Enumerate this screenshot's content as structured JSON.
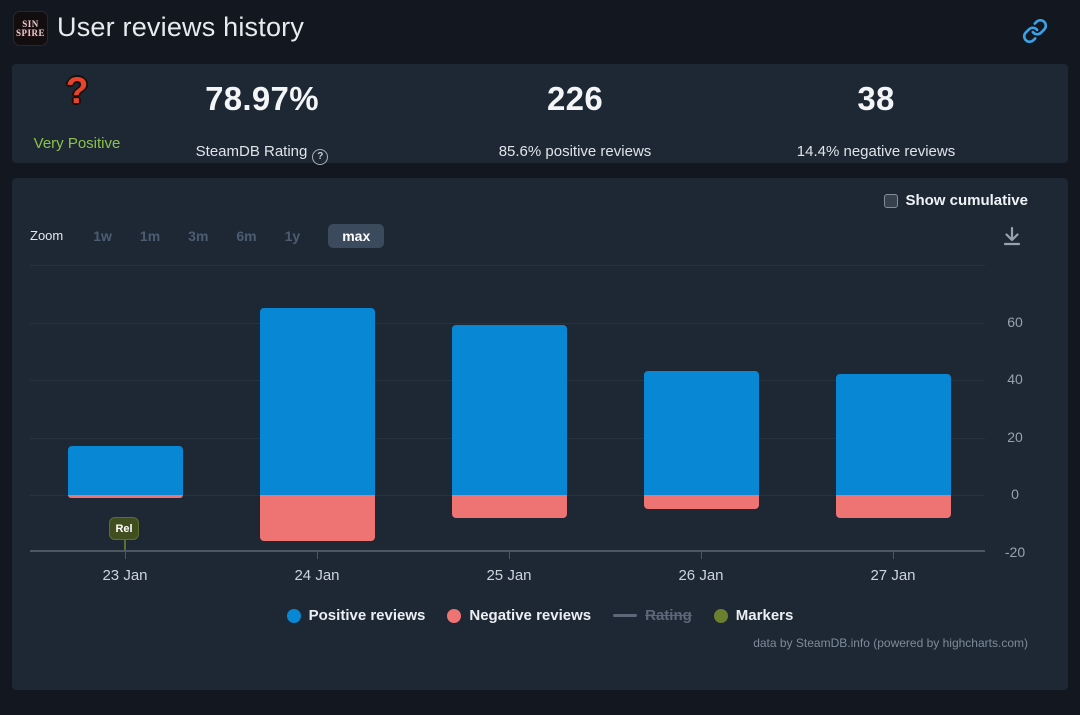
{
  "header": {
    "title": "User reviews history",
    "app_icon_lines": [
      "SIN",
      "SPIRE"
    ],
    "link_color": "#38a3e8"
  },
  "stats": {
    "rating_emoji": "?",
    "rating_label": "Very Positive",
    "rating_color": "#8bc34a",
    "score": "78.97%",
    "score_label": "SteamDB Rating",
    "help_icon": "?",
    "positive_count": "226",
    "positive_label": "85.6% positive reviews",
    "negative_count": "38",
    "negative_label": "14.4% negative reviews"
  },
  "chart_controls": {
    "cumulative_label": "Show cumulative",
    "cumulative_checked": false,
    "zoom_label": "Zoom",
    "zoom_options": [
      "1w",
      "1m",
      "3m",
      "6m",
      "1y",
      "max"
    ],
    "active_zoom": "max"
  },
  "chart_data": {
    "type": "bar",
    "title": "",
    "categories": [
      "23 Jan",
      "24 Jan",
      "25 Jan",
      "26 Jan",
      "27 Jan"
    ],
    "series": [
      {
        "name": "Positive reviews",
        "color": "#0887d5",
        "values": [
          17,
          65,
          59,
          43,
          42
        ]
      },
      {
        "name": "Negative reviews",
        "color": "#ee7373",
        "values": [
          -1,
          -16,
          -8,
          -5,
          -8
        ]
      }
    ],
    "disabled_series": [
      {
        "name": "Rating",
        "color": "#5a6878"
      }
    ],
    "markers": [
      {
        "label": "Rel",
        "category": "23 Jan",
        "color": "#414f20"
      }
    ],
    "y_ticks": [
      60,
      40,
      20,
      0,
      -20
    ],
    "grid_lines": [
      80,
      60,
      40,
      20,
      0
    ],
    "ylim": [
      -21,
      80
    ],
    "grid": true,
    "legend_position": "bottom",
    "totals": {
      "positive": 226,
      "negative": 38
    }
  },
  "legend": [
    {
      "label": "Positive reviews",
      "color": "#0887d5",
      "shape": "circle",
      "enabled": true
    },
    {
      "label": "Negative reviews",
      "color": "#ee7373",
      "shape": "circle",
      "enabled": true
    },
    {
      "label": "Rating",
      "color": "#5a6878",
      "shape": "line",
      "enabled": false
    },
    {
      "label": "Markers",
      "color": "#6b7f2e",
      "shape": "circle",
      "enabled": true
    }
  ],
  "credits": "data by SteamDB.info (powered by highcharts.com)"
}
